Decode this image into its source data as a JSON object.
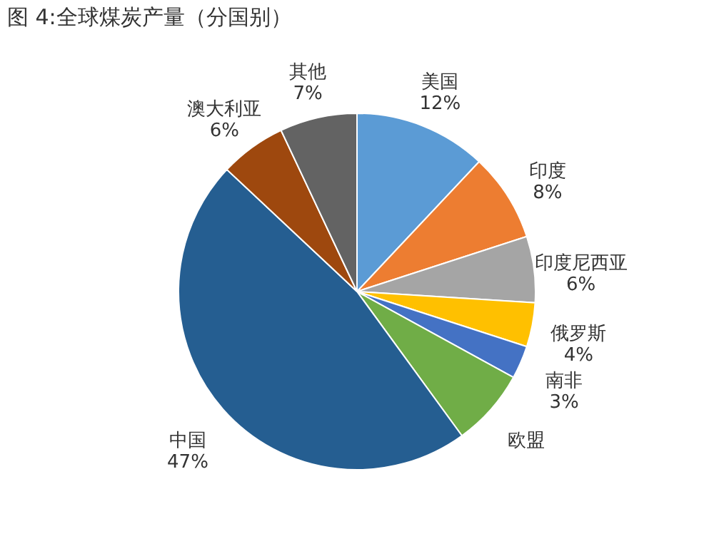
{
  "chart_data": {
    "type": "pie",
    "title": "图 4:全球煤炭产量（分国别）",
    "categories": [
      "美国",
      "印度",
      "印度尼西亚",
      "俄罗斯",
      "南非",
      "欧盟",
      "中国",
      "澳大利亚",
      "其他"
    ],
    "values": [
      12,
      8,
      6,
      4,
      3,
      7,
      47,
      6,
      7
    ],
    "value_labels": [
      "12%",
      "8%",
      "6%",
      "4%",
      "3%",
      null,
      "47%",
      "6%",
      "7%"
    ],
    "colors": [
      "#5b9bd5",
      "#ed7d31",
      "#a5a5a5",
      "#ffc000",
      "#4472c4",
      "#70ad47",
      "#255e91",
      "#9e480e",
      "#636363"
    ],
    "legend": false
  }
}
